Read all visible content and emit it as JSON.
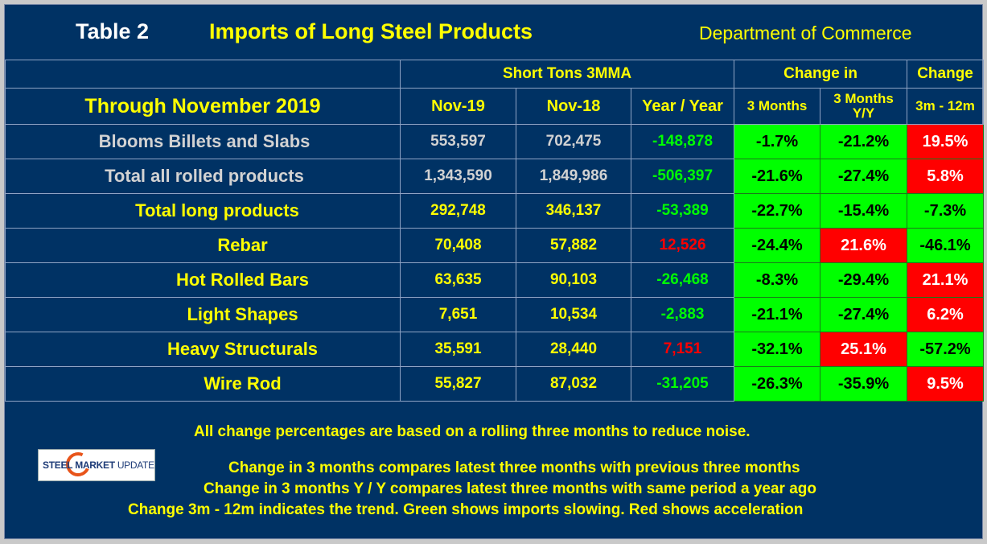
{
  "title": {
    "table_label": "Table 2",
    "main": "Imports of Long Steel Products",
    "source": "Department of Commerce"
  },
  "header": {
    "group_short_tons": "Short Tons 3MMA",
    "group_change_in": "Change in",
    "group_change": "Change",
    "period": "Through November 2019",
    "col_nov19": "Nov-19",
    "col_nov18": "Nov-18",
    "col_yy": "Year / Year",
    "col_3m": "3 Months",
    "col_3m_yy_line1": "3 Months",
    "col_3m_yy_line2": "Y/Y",
    "col_3m_12m": "3m - 12m"
  },
  "rows": [
    {
      "label": "Blooms Billets and Slabs",
      "level": 0,
      "nov19": "553,597",
      "nov18": "702,475",
      "yy": "-148,878",
      "yy_sign": "neg",
      "chg_3m": "-1.7%",
      "chg_3m_color": "green",
      "chg_3m_yy": "-21.2%",
      "chg_3m_yy_color": "green",
      "chg_3m_12m": "19.5%",
      "chg_3m_12m_color": "red"
    },
    {
      "label": "Total all rolled products",
      "level": 0,
      "nov19": "1,343,590",
      "nov18": "1,849,986",
      "yy": "-506,397",
      "yy_sign": "neg",
      "chg_3m": "-21.6%",
      "chg_3m_color": "green",
      "chg_3m_yy": "-27.4%",
      "chg_3m_yy_color": "green",
      "chg_3m_12m": "5.8%",
      "chg_3m_12m_color": "red"
    },
    {
      "label": "Total long products",
      "level": 1,
      "nov19": "292,748",
      "nov18": "346,137",
      "yy": "-53,389",
      "yy_sign": "neg",
      "chg_3m": "-22.7%",
      "chg_3m_color": "green",
      "chg_3m_yy": "-15.4%",
      "chg_3m_yy_color": "green",
      "chg_3m_12m": "-7.3%",
      "chg_3m_12m_color": "green"
    },
    {
      "label": "Rebar",
      "level": 2,
      "nov19": "70,408",
      "nov18": "57,882",
      "yy": "12,526",
      "yy_sign": "pos",
      "chg_3m": "-24.4%",
      "chg_3m_color": "green",
      "chg_3m_yy": "21.6%",
      "chg_3m_yy_color": "red",
      "chg_3m_12m": "-46.1%",
      "chg_3m_12m_color": "green"
    },
    {
      "label": "Hot Rolled Bars",
      "level": 2,
      "nov19": "63,635",
      "nov18": "90,103",
      "yy": "-26,468",
      "yy_sign": "neg",
      "chg_3m": "-8.3%",
      "chg_3m_color": "green",
      "chg_3m_yy": "-29.4%",
      "chg_3m_yy_color": "green",
      "chg_3m_12m": "21.1%",
      "chg_3m_12m_color": "red"
    },
    {
      "label": "Light Shapes",
      "level": 2,
      "nov19": "7,651",
      "nov18": "10,534",
      "yy": "-2,883",
      "yy_sign": "neg",
      "chg_3m": "-21.1%",
      "chg_3m_color": "green",
      "chg_3m_yy": "-27.4%",
      "chg_3m_yy_color": "green",
      "chg_3m_12m": "6.2%",
      "chg_3m_12m_color": "red"
    },
    {
      "label": "Heavy Structurals",
      "level": 2,
      "nov19": "35,591",
      "nov18": "28,440",
      "yy": "7,151",
      "yy_sign": "pos",
      "chg_3m": "-32.1%",
      "chg_3m_color": "green",
      "chg_3m_yy": "25.1%",
      "chg_3m_yy_color": "red",
      "chg_3m_12m": "-57.2%",
      "chg_3m_12m_color": "green"
    },
    {
      "label": "Wire Rod",
      "level": 2,
      "nov19": "55,827",
      "nov18": "87,032",
      "yy": "-31,205",
      "yy_sign": "neg",
      "chg_3m": "-26.3%",
      "chg_3m_color": "green",
      "chg_3m_yy": "-35.9%",
      "chg_3m_yy_color": "green",
      "chg_3m_12m": "9.5%",
      "chg_3m_12m_color": "red"
    }
  ],
  "notes": {
    "line1": "All change percentages are based on a rolling three months to reduce noise.",
    "line2": "Change in 3 months compares latest three months with previous three months",
    "line3": "Change in 3 months  Y / Y compares latest three months with same period a year ago",
    "line4": "Change 3m - 12m indicates the trend. Green shows imports slowing. Red shows acceleration"
  },
  "logo": {
    "word1": "STEEL",
    "word2": "MARKET",
    "word3": "UPDATE"
  },
  "colors": {
    "background": "#003264",
    "heading_text": "#ffff00",
    "positive_change_cell": "#ff0000",
    "negative_change_cell": "#00ff00"
  }
}
